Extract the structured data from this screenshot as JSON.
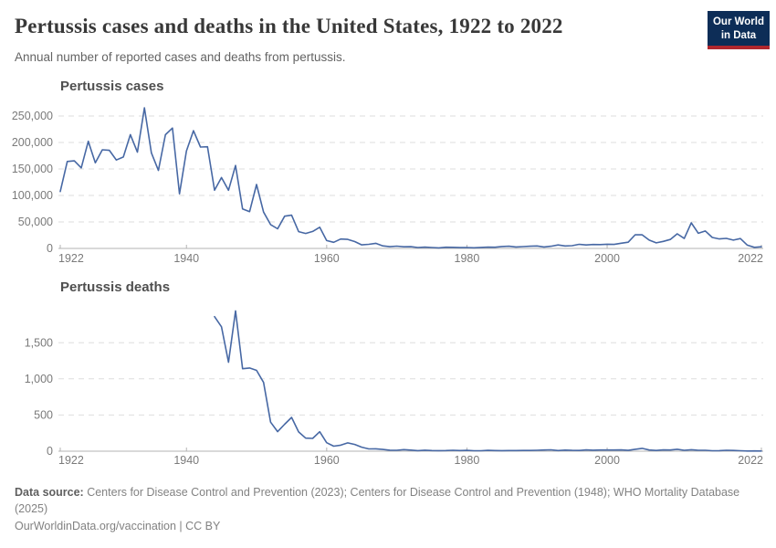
{
  "header": {
    "title": "Pertussis cases and deaths in the United States, 1922 to 2022",
    "subtitle": "Annual number of reported cases and deaths from pertussis.",
    "logo": {
      "line1": "Our World",
      "line2": "in Data",
      "bg_color": "#0d2d57",
      "accent_color": "#b0272e"
    }
  },
  "footer": {
    "source_label": "Data source:",
    "source_text": " Centers for Disease Control and Prevention (2023); Centers for Disease Control and Prevention (1948); WHO Mortality Database (2025)",
    "license": "OurWorldinData.org/vaccination | CC BY"
  },
  "colors": {
    "line": "#4768a4",
    "grid": "#dedede",
    "axis": "#b3b3b3",
    "tick_text": "#7a7a7a"
  },
  "chart_data": [
    {
      "type": "line",
      "title": "Pertussis cases",
      "xlabel": "",
      "ylabel": "",
      "xlim": [
        1922,
        2022
      ],
      "ylim": [
        0,
        265269
      ],
      "xticks": [
        1922,
        1940,
        1960,
        1980,
        2000,
        2022
      ],
      "yticks": [
        0,
        50000,
        100000,
        150000,
        200000,
        250000
      ],
      "grid": "dashed horizontal",
      "legend": "none",
      "x_start": 1922,
      "x_step": 1,
      "values": [
        107473,
        164191,
        165418,
        152003,
        202210,
        161799,
        186173,
        185243,
        166914,
        172559,
        214870,
        181714,
        265269,
        180518,
        147237,
        214652,
        227319,
        103188,
        183866,
        222202,
        191383,
        191890,
        109873,
        133792,
        109860,
        156517,
        74715,
        69479,
        120718,
        68687,
        45030,
        37129,
        60886,
        62786,
        31732,
        28295,
        32148,
        40005,
        14809,
        11468,
        17749,
        17135,
        13005,
        6799,
        7717,
        9718,
        4810,
        3285,
        4249,
        3036,
        3287,
        1759,
        2402,
        1738,
        1010,
        2177,
        2063,
        1623,
        1730,
        1248,
        1895,
        2463,
        2276,
        3589,
        4195,
        2823,
        3450,
        4157,
        4570,
        2719,
        4083,
        6586,
        4617,
        5137,
        7796,
        6564,
        7405,
        7298,
        7867,
        7580,
        9771,
        11647,
        25827,
        25616,
        15632,
        10454,
        13278,
        16858,
        27550,
        18719,
        48277,
        28639,
        32971,
        20762,
        17972,
        18975,
        15609,
        18617,
        6124,
        2116,
        3044
      ]
    },
    {
      "type": "line",
      "title": "Pertussis deaths",
      "xlabel": "",
      "ylabel": "",
      "xlim": [
        1922,
        2022
      ],
      "ylim": [
        0,
        1940
      ],
      "xticks": [
        1922,
        1940,
        1960,
        1980,
        2000,
        2022
      ],
      "yticks": [
        0,
        500,
        1000,
        1500
      ],
      "grid": "dashed horizontal",
      "legend": "none",
      "x_start": 1944,
      "x_step": 1,
      "values": [
        1860,
        1720,
        1230,
        1940,
        1140,
        1150,
        1118,
        951,
        402,
        270,
        373,
        467,
        266,
        180,
        177,
        269,
        118,
        69,
        83,
        115,
        93,
        55,
        32,
        33,
        24,
        14,
        12,
        22,
        15,
        8,
        14,
        9,
        8,
        9,
        12,
        9,
        11,
        6,
        6,
        11,
        9,
        8,
        9,
        9,
        10,
        10,
        12,
        16,
        19,
        9,
        15,
        11,
        10,
        18,
        14,
        17,
        17,
        17,
        18,
        11,
        27,
        39,
        16,
        10,
        18,
        17,
        26,
        13,
        20,
        13,
        13,
        6,
        7,
        13,
        10,
        6,
        2,
        4,
        3
      ]
    }
  ]
}
